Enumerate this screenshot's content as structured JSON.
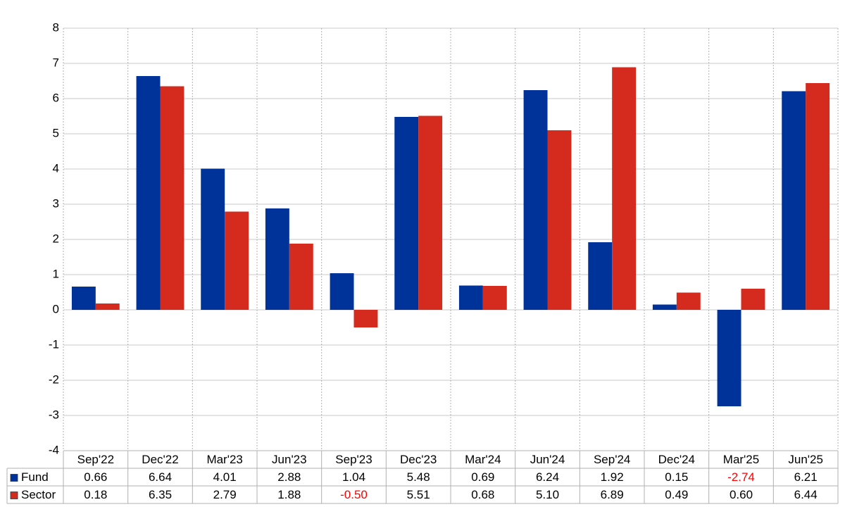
{
  "chart_data": {
    "type": "bar",
    "categories": [
      "Sep'22",
      "Dec'22",
      "Mar'23",
      "Jun'23",
      "Sep'23",
      "Dec'23",
      "Mar'24",
      "Jun'24",
      "Sep'24",
      "Dec'24",
      "Mar'25",
      "Jun'25"
    ],
    "series": [
      {
        "name": "Fund",
        "color": "#003399",
        "values": [
          0.66,
          6.64,
          4.01,
          2.88,
          1.04,
          5.48,
          0.69,
          6.24,
          1.92,
          0.15,
          -2.74,
          6.21
        ],
        "value_labels": [
          "0.66",
          "6.64",
          "4.01",
          "2.88",
          "1.04",
          "5.48",
          "0.69",
          "6.24",
          "1.92",
          "0.15",
          "-2.74",
          "6.21"
        ]
      },
      {
        "name": "Sector",
        "color": "#d52b1e",
        "values": [
          0.18,
          6.35,
          2.79,
          1.88,
          -0.5,
          5.51,
          0.68,
          5.1,
          6.89,
          0.49,
          0.6,
          6.44
        ],
        "value_labels": [
          "0.18",
          "6.35",
          "2.79",
          "1.88",
          "-0.50",
          "5.51",
          "0.68",
          "5.10",
          "6.89",
          "0.49",
          "0.60",
          "6.44"
        ]
      }
    ],
    "ylim": [
      -4,
      8
    ],
    "yticks": [
      -4,
      -3,
      -2,
      -1,
      0,
      1,
      2,
      3,
      4,
      5,
      6,
      7,
      8
    ],
    "grid": true,
    "negative_label_color": "#ff0000"
  }
}
